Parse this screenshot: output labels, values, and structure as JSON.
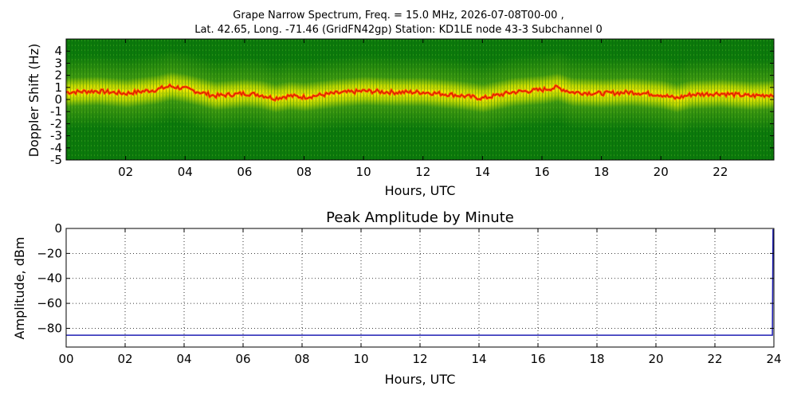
{
  "chart_data": [
    {
      "type": "heatmap",
      "title_line1": "Grape Narrow Spectrum, Freq. = 15.0 MHz, 2026-07-08T00-00 ,",
      "title_line2": "Lat.  42.65, Long. -71.46 (GridFN42gp) Station: KD1LE node 43-3 Subchannel 0",
      "xlabel": "Hours, UTC",
      "ylabel": "Doppler Shift (Hz)",
      "xlim": [
        0,
        23.8
      ],
      "ylim": [
        -5,
        5
      ],
      "x_ticks": [
        {
          "value": 2,
          "label": "02"
        },
        {
          "value": 4,
          "label": "04"
        },
        {
          "value": 6,
          "label": "06"
        },
        {
          "value": 8,
          "label": "08"
        },
        {
          "value": 10,
          "label": "10"
        },
        {
          "value": 12,
          "label": "12"
        },
        {
          "value": 14,
          "label": "14"
        },
        {
          "value": 16,
          "label": "16"
        },
        {
          "value": 18,
          "label": "18"
        },
        {
          "value": 20,
          "label": "20"
        },
        {
          "value": 22,
          "label": "22"
        }
      ],
      "y_ticks": [
        {
          "value": 4,
          "label": "4"
        },
        {
          "value": 3,
          "label": "3"
        },
        {
          "value": 2,
          "label": "2"
        },
        {
          "value": 1,
          "label": "1"
        },
        {
          "value": 0,
          "label": "0"
        },
        {
          "value": -1,
          "label": "-1"
        },
        {
          "value": -2,
          "label": "-2"
        },
        {
          "value": -3,
          "label": "-3"
        },
        {
          "value": -4,
          "label": "-4"
        },
        {
          "value": -5,
          "label": "-5"
        }
      ],
      "peak_trace": {
        "hours": [
          0,
          1,
          2,
          3,
          3.5,
          4,
          4.5,
          5,
          6,
          6.5,
          7,
          7.5,
          8,
          9,
          10,
          11,
          12,
          13,
          14,
          15,
          16,
          16.5,
          17,
          18,
          19,
          20,
          20.5,
          21,
          22,
          23,
          23.8
        ],
        "doppler_hz": [
          0.6,
          0.7,
          0.5,
          0.8,
          1.1,
          0.9,
          0.6,
          0.3,
          0.5,
          0.4,
          0.1,
          0.3,
          0.2,
          0.5,
          0.7,
          0.6,
          0.6,
          0.4,
          0.1,
          0.6,
          0.8,
          1.0,
          0.6,
          0.5,
          0.6,
          0.4,
          0.1,
          0.4,
          0.5,
          0.3,
          0.4
        ]
      },
      "colors": {
        "background": "#0b7a0b",
        "mid": "#d8e000",
        "peak": "#ff4d00"
      }
    },
    {
      "type": "line",
      "title": "Peak Amplitude by Minute",
      "xlabel": "Hours, UTC",
      "ylabel": "Amplitude, dBm",
      "xlim": [
        0,
        24
      ],
      "ylim": [
        -95,
        0
      ],
      "x_ticks": [
        {
          "value": 0,
          "label": "00"
        },
        {
          "value": 2,
          "label": "02"
        },
        {
          "value": 4,
          "label": "04"
        },
        {
          "value": 6,
          "label": "06"
        },
        {
          "value": 8,
          "label": "08"
        },
        {
          "value": 10,
          "label": "10"
        },
        {
          "value": 12,
          "label": "12"
        },
        {
          "value": 14,
          "label": "14"
        },
        {
          "value": 16,
          "label": "16"
        },
        {
          "value": 18,
          "label": "18"
        },
        {
          "value": 20,
          "label": "20"
        },
        {
          "value": 22,
          "label": "22"
        },
        {
          "value": 24,
          "label": "24"
        }
      ],
      "y_ticks": [
        {
          "value": 0,
          "label": "0"
        },
        {
          "value": -20,
          "label": "−20"
        },
        {
          "value": -40,
          "label": "−40"
        },
        {
          "value": -60,
          "label": "−60"
        },
        {
          "value": -80,
          "label": "−80"
        }
      ],
      "grid": true,
      "series": [
        {
          "x": [
            0,
            2,
            4,
            6,
            8,
            10,
            12,
            14,
            16,
            18,
            20,
            22,
            23.95,
            23.97,
            24
          ],
          "y": [
            -85.5,
            -85.5,
            -85.5,
            -85.5,
            -85.5,
            -85.5,
            -85.5,
            -85.5,
            -85.5,
            -85.5,
            -85.5,
            -85.5,
            -85.5,
            -1,
            -1
          ],
          "color": "#1f1fb4"
        }
      ]
    }
  ]
}
